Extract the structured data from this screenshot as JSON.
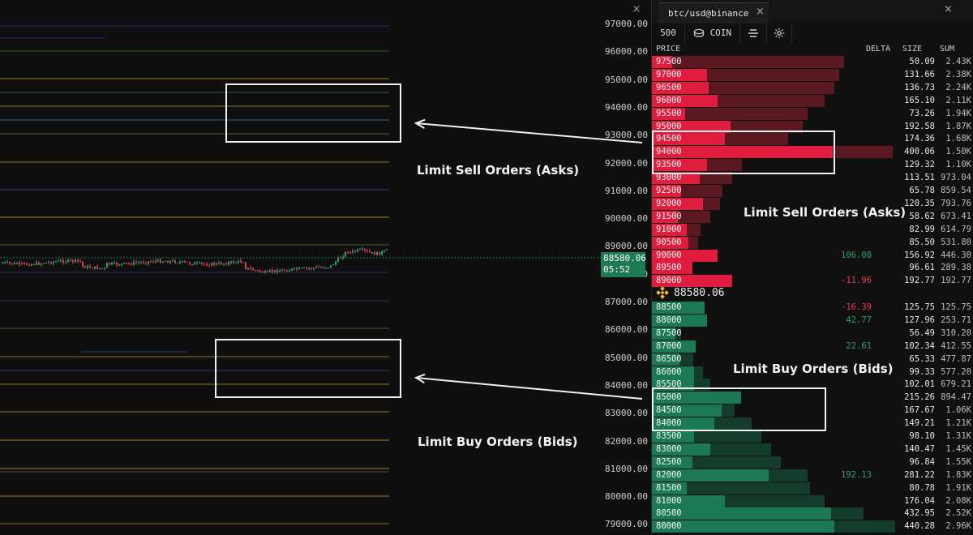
{
  "chart": {
    "close_icon": "×",
    "y_axis_labels": [
      "97000.00",
      "96000.00",
      "95000.00",
      "94000.00",
      "93000.00",
      "92000.00",
      "91000.00",
      "90000.00",
      "89000.00",
      "88000.00",
      "87000.00",
      "86000.00",
      "85000.00",
      "84000.00",
      "83000.00",
      "82000.00",
      "81000.00",
      "80000.00",
      "79000.00"
    ],
    "last_price": "88580.06",
    "countdown": "05:52",
    "annotation_asks": "Limit Sell Orders (Asks)",
    "annotation_bids": "Limit Buy Orders (Bids)",
    "colors": {
      "up": "#26a17b",
      "down": "#e23a4a",
      "level_line": "#8a7a2a",
      "ask_bar": "#e11d3f",
      "bid_bar": "#1a7b55"
    }
  },
  "orderbook": {
    "tab_title": "btc/usd@binance",
    "tab_close": "×",
    "window_close": "×",
    "toolbar": {
      "depth": "500",
      "unit": "COIN"
    },
    "headers": {
      "price": "PRICE",
      "delta": "DELTA",
      "size": "SIZE",
      "sum": "SUM"
    },
    "annotation_asks": "Limit Sell Orders (Asks)",
    "annotation_bids": "Limit Buy Orders (Bids)",
    "asks": [
      {
        "price": "97500",
        "delta": "",
        "size": "50.09",
        "sum": "2.43K",
        "fill": 0.11,
        "depth": 0.79
      },
      {
        "price": "97000",
        "delta": "",
        "size": "131.66",
        "sum": "2.38K",
        "fill": 0.3,
        "depth": 0.77
      },
      {
        "price": "96500",
        "delta": "",
        "size": "136.73",
        "sum": "2.24K",
        "fill": 0.31,
        "depth": 0.75
      },
      {
        "price": "96000",
        "delta": "",
        "size": "165.10",
        "sum": "2.11K",
        "fill": 0.36,
        "depth": 0.71
      },
      {
        "price": "95500",
        "delta": "",
        "size": "73.26",
        "sum": "1.94K",
        "fill": 0.18,
        "depth": 0.64
      },
      {
        "price": "95000",
        "delta": "",
        "size": "192.58",
        "sum": "1.87K",
        "fill": 0.43,
        "depth": 0.62
      },
      {
        "price": "94500",
        "delta": "",
        "size": "174.36",
        "sum": "1.68K",
        "fill": 0.4,
        "depth": 0.56
      },
      {
        "price": "94000",
        "delta": "",
        "size": "400.06",
        "sum": "1.50K",
        "fill": 0.99,
        "depth": 0.99
      },
      {
        "price": "93500",
        "delta": "",
        "size": "129.32",
        "sum": "1.10K",
        "fill": 0.3,
        "depth": 0.37
      },
      {
        "price": "93000",
        "delta": "",
        "size": "113.51",
        "sum": "973.04",
        "fill": 0.26,
        "depth": 0.33
      },
      {
        "price": "92500",
        "delta": "",
        "size": "65.78",
        "sum": "859.54",
        "fill": 0.16,
        "depth": 0.29
      },
      {
        "price": "92000",
        "delta": "",
        "size": "120.35",
        "sum": "793.76",
        "fill": 0.28,
        "depth": 0.28
      },
      {
        "price": "91500",
        "delta": "",
        "size": "58.62",
        "sum": "673.41",
        "fill": 0.14,
        "depth": 0.24
      },
      {
        "price": "91000",
        "delta": "",
        "size": "82.99",
        "sum": "614.79",
        "fill": 0.19,
        "depth": 0.2
      },
      {
        "price": "90500",
        "delta": "",
        "size": "85.50",
        "sum": "531.80",
        "fill": 0.2,
        "depth": 0.19
      },
      {
        "price": "90000",
        "delta": "106.08",
        "size": "156.92",
        "sum": "446.30",
        "fill": 0.36,
        "depth": 0.18
      },
      {
        "price": "89500",
        "delta": "",
        "size": "96.61",
        "sum": "289.38",
        "fill": 0.22,
        "depth": 0.12
      },
      {
        "price": "89000",
        "delta": "-11.96",
        "size": "192.77",
        "sum": "192.77",
        "fill": 0.44,
        "depth": 0.09
      }
    ],
    "mid_price": "88580.06",
    "bids": [
      {
        "price": "88500",
        "delta": "-16.39",
        "size": "125.75",
        "sum": "125.75",
        "fill": 0.29,
        "depth": 0.05
      },
      {
        "price": "88000",
        "delta": "42.77",
        "size": "127.96",
        "sum": "253.71",
        "fill": 0.3,
        "depth": 0.1
      },
      {
        "price": "87500",
        "delta": "",
        "size": "56.49",
        "sum": "310.20",
        "fill": 0.13,
        "depth": 0.12
      },
      {
        "price": "87000",
        "delta": "22.61",
        "size": "102.34",
        "sum": "412.55",
        "fill": 0.24,
        "depth": 0.16
      },
      {
        "price": "86500",
        "delta": "",
        "size": "65.33",
        "sum": "477.87",
        "fill": 0.15,
        "depth": 0.17
      },
      {
        "price": "86000",
        "delta": "",
        "size": "99.33",
        "sum": "577.20",
        "fill": 0.23,
        "depth": 0.21
      },
      {
        "price": "85500",
        "delta": "",
        "size": "102.01",
        "sum": "679.21",
        "fill": 0.23,
        "depth": 0.24
      },
      {
        "price": "85000",
        "delta": "",
        "size": "215.26",
        "sum": "894.47",
        "fill": 0.49,
        "depth": 0.3
      },
      {
        "price": "84500",
        "delta": "",
        "size": "167.67",
        "sum": "1.06K",
        "fill": 0.38,
        "depth": 0.34
      },
      {
        "price": "84000",
        "delta": "",
        "size": "149.21",
        "sum": "1.21K",
        "fill": 0.34,
        "depth": 0.41
      },
      {
        "price": "83500",
        "delta": "",
        "size": "98.10",
        "sum": "1.31K",
        "fill": 0.23,
        "depth": 0.45
      },
      {
        "price": "83000",
        "delta": "",
        "size": "140.47",
        "sum": "1.45K",
        "fill": 0.32,
        "depth": 0.49
      },
      {
        "price": "82500",
        "delta": "",
        "size": "96.84",
        "sum": "1.55K",
        "fill": 0.22,
        "depth": 0.53
      },
      {
        "price": "82000",
        "delta": "192.13",
        "size": "281.22",
        "sum": "1.83K",
        "fill": 0.64,
        "depth": 0.64
      },
      {
        "price": "81500",
        "delta": "",
        "size": "80.78",
        "sum": "1.91K",
        "fill": 0.19,
        "depth": 0.65
      },
      {
        "price": "81000",
        "delta": "",
        "size": "176.04",
        "sum": "2.08K",
        "fill": 0.4,
        "depth": 0.71
      },
      {
        "price": "80500",
        "delta": "",
        "size": "432.95",
        "sum": "2.52K",
        "fill": 0.98,
        "depth": 0.87
      },
      {
        "price": "80000",
        "delta": "",
        "size": "440.28",
        "sum": "2.96K",
        "fill": 1.0,
        "depth": 1.0
      }
    ],
    "colors": {
      "ask_fill": "#e11d3f",
      "ask_depth": "#5a1820",
      "bid_fill": "#1b7a55",
      "bid_depth": "#143c2c",
      "delta_pos": "#2f9e6a",
      "delta_neg": "#e0404e"
    }
  }
}
